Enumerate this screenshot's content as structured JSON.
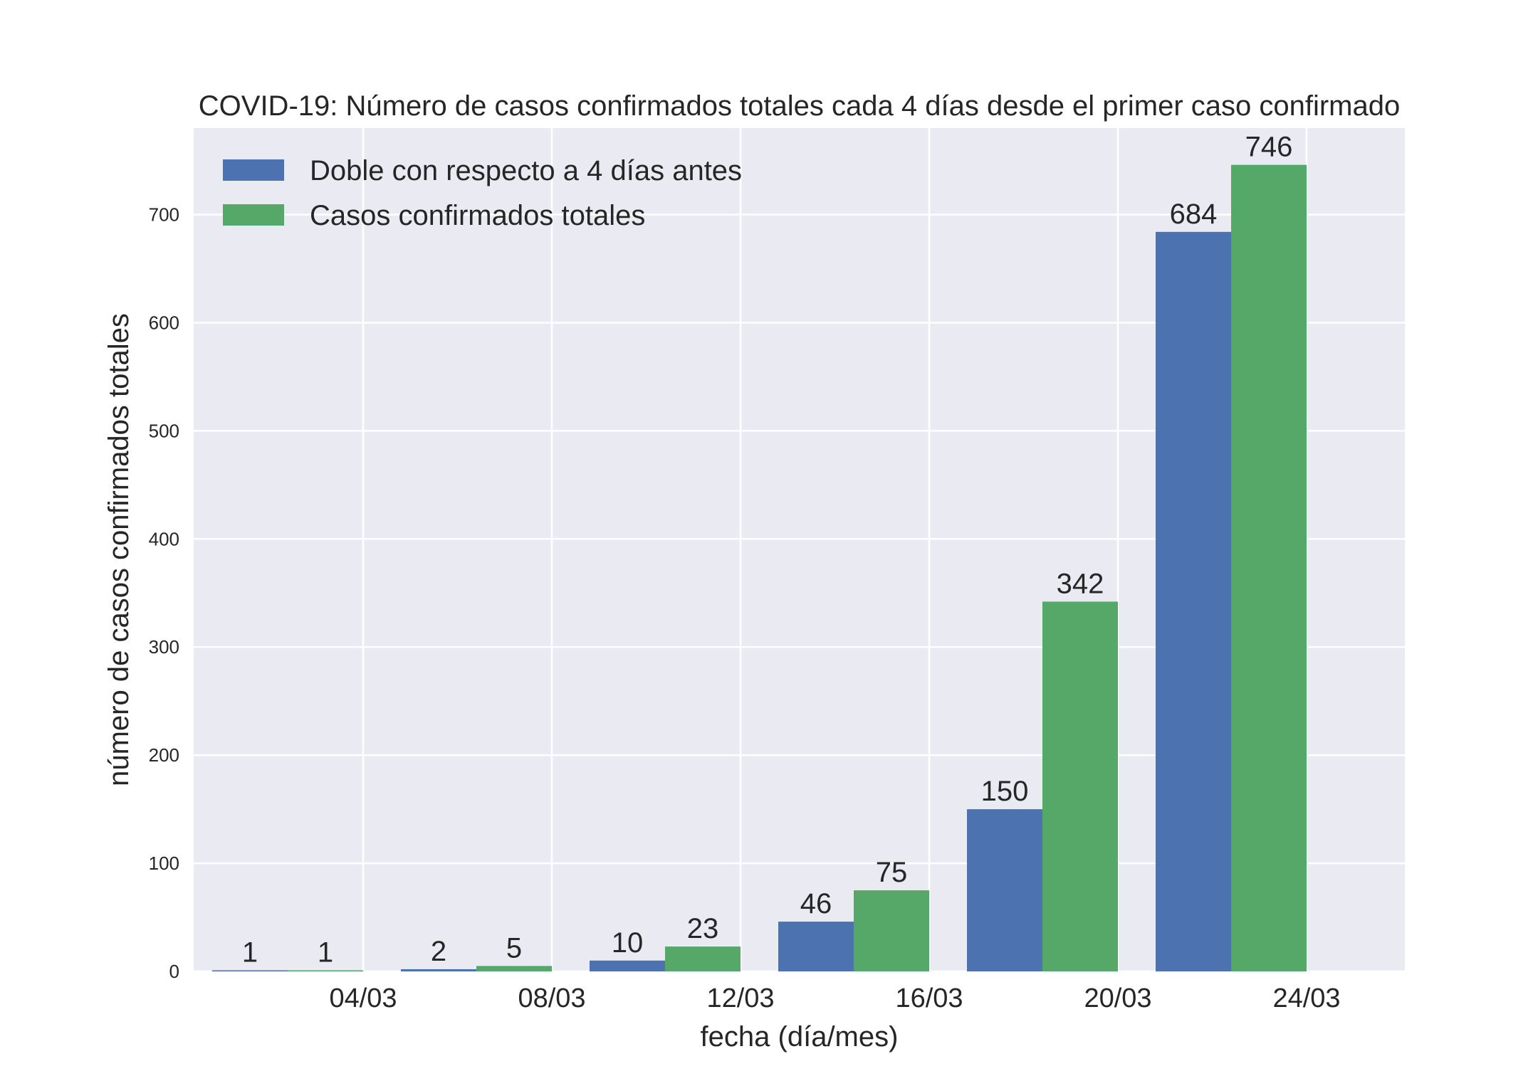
{
  "chart_data": {
    "type": "bar",
    "title": "COVID-19: Número de casos confirmados totales cada 4 días desde el primer caso confirmado",
    "xlabel": "fecha (día/mes)",
    "ylabel": "número de casos confirmados totales",
    "categories": [
      "04/03",
      "08/03",
      "12/03",
      "16/03",
      "20/03",
      "24/03"
    ],
    "series": [
      {
        "name": "Doble con respecto a 4 días antes",
        "values": [
          1,
          2,
          10,
          46,
          150,
          684
        ],
        "color": "#4c72b0"
      },
      {
        "name": "Casos confirmados totales",
        "values": [
          1,
          5,
          23,
          75,
          342,
          746
        ],
        "color": "#55a868"
      }
    ],
    "ylim": [
      0,
      780
    ],
    "yticks": [
      0,
      100,
      200,
      300,
      400,
      500,
      600,
      700
    ],
    "grid": true,
    "legend_position": "upper-left",
    "plot_background": "#eaeaf2",
    "grid_color": "#ffffff"
  }
}
